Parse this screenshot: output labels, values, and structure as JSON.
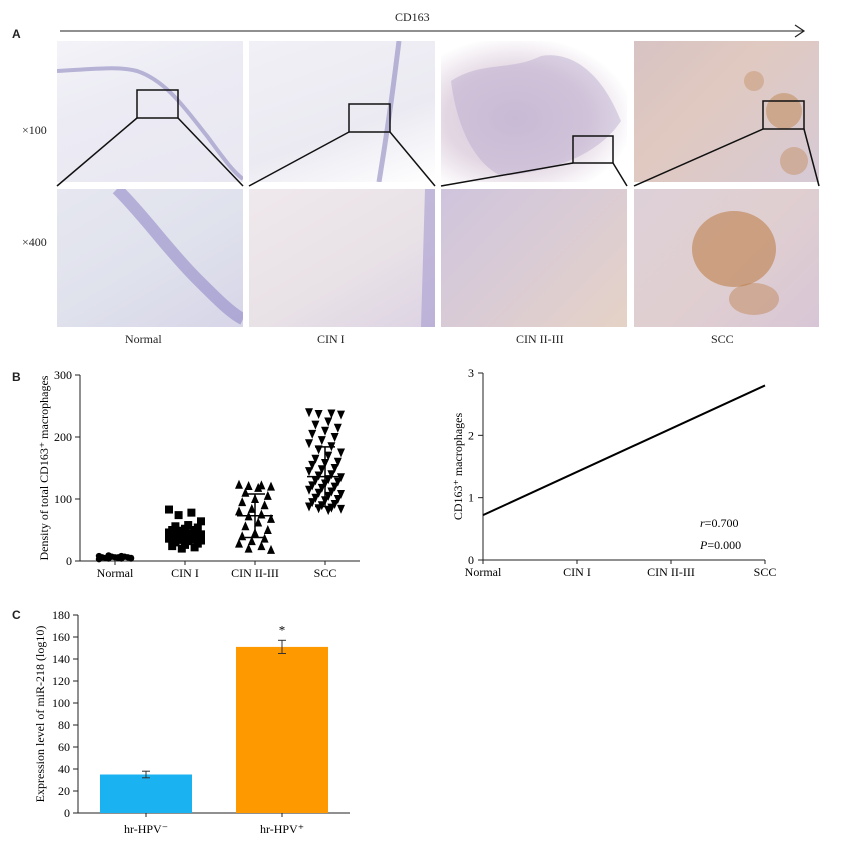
{
  "figure": {
    "panel_a": {
      "letter": "A",
      "arrow_label": "CD163",
      "mag_low": "×100",
      "mag_high": "×400",
      "columns": [
        "Normal",
        "CIN I",
        "CIN II-III",
        "SCC"
      ]
    },
    "panel_b": {
      "letter": "B"
    },
    "panel_c": {
      "letter": "C"
    }
  },
  "chart_data": [
    {
      "id": "b-left",
      "type": "scatter",
      "categories": [
        "Normal",
        "CIN I",
        "CIN II-III",
        "SCC"
      ],
      "xlabel": "",
      "ylabel": "Density of total CD163⁺ macrophages",
      "ylim": [
        0,
        300
      ],
      "yticks": [
        0,
        100,
        200,
        300
      ],
      "markers": [
        "circle",
        "square",
        "triangle-up",
        "triangle-down"
      ],
      "series": [
        {
          "category": "Normal",
          "mean": 6,
          "sd": 2,
          "values": [
            3,
            4,
            4,
            5,
            5,
            5,
            6,
            6,
            6,
            7,
            7,
            8,
            8,
            9,
            4,
            6
          ]
        },
        {
          "category": "CIN I",
          "mean": 42,
          "sd": 12,
          "values": [
            83,
            78,
            74,
            64,
            58,
            56,
            54,
            52,
            50,
            50,
            48,
            46,
            45,
            44,
            43,
            42,
            41,
            40,
            40,
            39,
            38,
            37,
            36,
            35,
            34,
            33,
            32,
            30,
            28,
            26,
            24,
            22,
            20
          ]
        },
        {
          "category": "CIN II-III",
          "mean": 73,
          "sd": 35,
          "values": [
            123,
            122,
            121,
            120,
            118,
            110,
            105,
            100,
            95,
            90,
            84,
            80,
            75,
            72,
            68,
            62,
            56,
            50,
            45,
            40,
            36,
            32,
            28,
            24,
            20,
            18
          ]
        },
        {
          "category": "SCC",
          "mean": 136,
          "sd": 48,
          "values": [
            240,
            238,
            237,
            236,
            225,
            220,
            215,
            210,
            205,
            200,
            195,
            190,
            185,
            180,
            175,
            170,
            165,
            160,
            158,
            155,
            150,
            148,
            145,
            140,
            138,
            135,
            132,
            130,
            128,
            125,
            122,
            120,
            118,
            115,
            112,
            110,
            108,
            105,
            102,
            100,
            98,
            95,
            92,
            90,
            88,
            86,
            85,
            84,
            82
          ]
        }
      ]
    },
    {
      "id": "b-right",
      "type": "line",
      "categories": [
        "Normal",
        "CIN I",
        "CIN II-III",
        "SCC"
      ],
      "ylabel": "CD163⁺ macrophages",
      "ylim": [
        0,
        3
      ],
      "yticks": [
        0,
        1,
        2,
        3
      ],
      "line": {
        "start": 0.72,
        "end": 2.8
      },
      "annotations": [
        {
          "italic": "r",
          "text": "=0.700"
        },
        {
          "italic": "P",
          "text": "=0.000"
        }
      ]
    },
    {
      "id": "c",
      "type": "bar",
      "categories": [
        "hr-HPV⁻",
        "hr-HPV⁺"
      ],
      "values": [
        35,
        151
      ],
      "errors": [
        3,
        6
      ],
      "colors": [
        "#1ab2f0",
        "#ff9900"
      ],
      "significance": [
        "",
        "*"
      ],
      "ylabel": "Expression level of miR-218 (log10)",
      "ylim": [
        0,
        180
      ],
      "yticks": [
        0,
        20,
        40,
        60,
        80,
        100,
        120,
        140,
        160,
        180
      ]
    }
  ]
}
